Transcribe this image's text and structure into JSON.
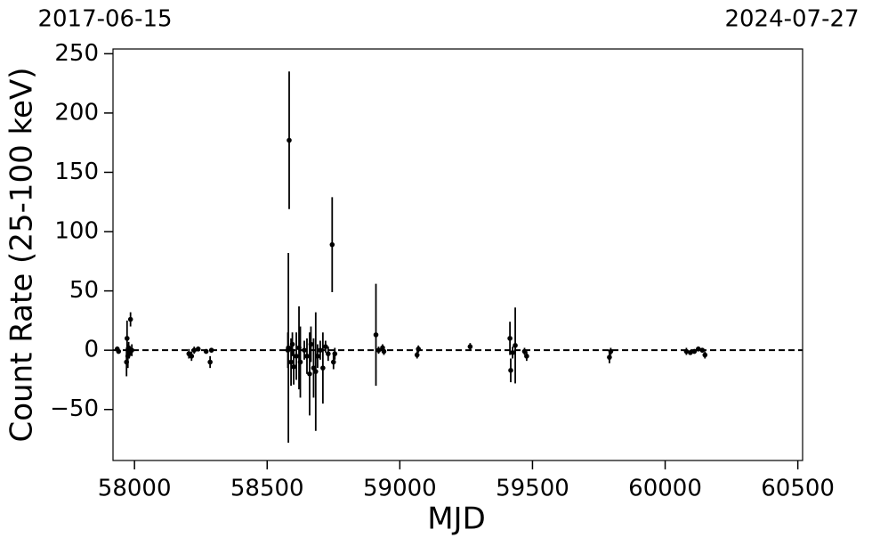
{
  "chart_data": {
    "type": "errorbar",
    "xlabel": "MJD",
    "ylabel": "Count Rate (25-100 keV)",
    "top_labels": [
      "2017-06-15",
      "2024-07-27"
    ],
    "xlim": [
      57919,
      60518
    ],
    "ylim": [
      -93,
      254
    ],
    "xticks": [
      58000,
      58500,
      59000,
      59500,
      60000,
      60500
    ],
    "yticks": [
      {
        "value": -50,
        "label": "−50"
      },
      0,
      50,
      100,
      150,
      200,
      250
    ],
    "hline": 0,
    "color": "#000000",
    "x": [
      57935,
      57940,
      57970,
      57972,
      57975,
      57978,
      57980,
      57985,
      57990,
      58205,
      58215,
      58225,
      58240,
      58270,
      58285,
      58290,
      58578,
      58580,
      58583,
      58590,
      58595,
      58600,
      58610,
      58620,
      58625,
      58640,
      58650,
      58660,
      58665,
      58675,
      58683,
      58690,
      58700,
      58710,
      58720,
      58730,
      58745,
      58750,
      58755,
      58910,
      58920,
      58935,
      58940,
      59065,
      59070,
      59265,
      59415,
      59418,
      59425,
      59435,
      59470,
      59478,
      59790,
      59795,
      60080,
      60095,
      60110,
      60125,
      60140,
      60150
    ],
    "values": [
      1,
      -1,
      -10,
      10,
      -5,
      2,
      -3,
      26,
      0,
      -3,
      -5,
      0,
      1,
      -1,
      -10,
      0,
      0,
      2,
      177,
      -10,
      5,
      -14,
      -5,
      2,
      -10,
      0,
      -5,
      -20,
      5,
      -15,
      -18,
      -5,
      0,
      -15,
      3,
      -3,
      89,
      -10,
      -3,
      13,
      0,
      2,
      -1,
      -4,
      1,
      3,
      10,
      -17,
      -2,
      4,
      -1,
      -5,
      -6,
      -1,
      -1,
      -2,
      -1,
      1,
      0,
      -4
    ],
    "errors": [
      2,
      2,
      12,
      15,
      10,
      5,
      4,
      6,
      5,
      4,
      4,
      3,
      2,
      2,
      5,
      2,
      15,
      80,
      58,
      20,
      10,
      15,
      20,
      35,
      30,
      8,
      15,
      35,
      15,
      25,
      50,
      10,
      8,
      30,
      5,
      6,
      40,
      6,
      5,
      43,
      3,
      3,
      3,
      3,
      3,
      3,
      14,
      10,
      5,
      32,
      3,
      4,
      5,
      3,
      3,
      2,
      2,
      2,
      2,
      3
    ]
  }
}
